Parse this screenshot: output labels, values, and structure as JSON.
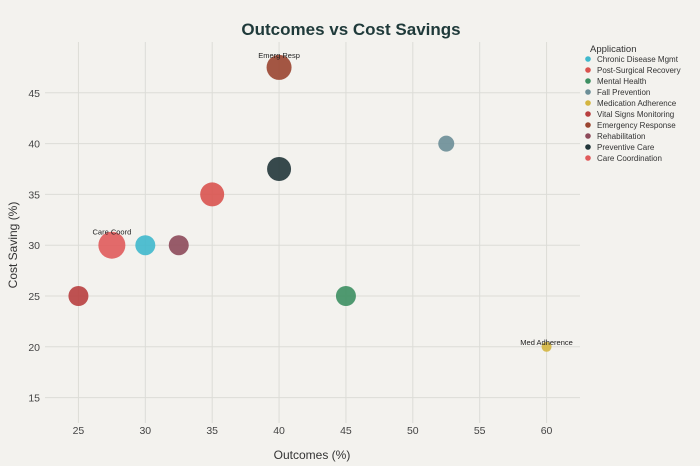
{
  "chart_data": {
    "type": "scatter",
    "title": "Outcomes vs Cost Savings",
    "xlabel": "Outcomes (%)",
    "ylabel": "Cost Saving (%)",
    "xlim": [
      22.5,
      62.5
    ],
    "ylim": [
      12.5,
      50
    ],
    "x_ticks": [
      25,
      30,
      35,
      40,
      45,
      50,
      55,
      60
    ],
    "y_ticks": [
      15,
      20,
      25,
      30,
      35,
      40,
      45
    ],
    "grid": true,
    "legend_title": "Application",
    "legend_position": "right",
    "series": [
      {
        "name": "Chronic Disease Mgmt",
        "color": "#3fb8cc",
        "x": 30,
        "y": 30,
        "size": 1.0
      },
      {
        "name": "Post-Surgical Recovery",
        "color": "#d9534f",
        "x": 35,
        "y": 35,
        "size": 1.2
      },
      {
        "name": "Mental Health",
        "color": "#3d8f62",
        "x": 45,
        "y": 25,
        "size": 1.0
      },
      {
        "name": "Fall Prevention",
        "color": "#6b8e97",
        "x": 52.5,
        "y": 40,
        "size": 0.8
      },
      {
        "name": "Medication Adherence",
        "color": "#d4b53f",
        "x": 60,
        "y": 20,
        "size": 0.5,
        "label": "Med Adherence"
      },
      {
        "name": "Vital Signs Monitoring",
        "color": "#b83f3f",
        "x": 25,
        "y": 25,
        "size": 1.0
      },
      {
        "name": "Emergency Response",
        "color": "#9a4530",
        "x": 40,
        "y": 47.5,
        "size": 1.25,
        "label": "Emerg Resp"
      },
      {
        "name": "Rehabilitation",
        "color": "#8d4a5a",
        "x": 32.5,
        "y": 30,
        "size": 1.0
      },
      {
        "name": "Preventive Care",
        "color": "#22363a",
        "x": 40,
        "y": 37.5,
        "size": 1.2
      },
      {
        "name": "Care Coordination",
        "color": "#e05b5b",
        "x": 27.5,
        "y": 30,
        "size": 1.35,
        "label": "Care Coord"
      }
    ]
  }
}
